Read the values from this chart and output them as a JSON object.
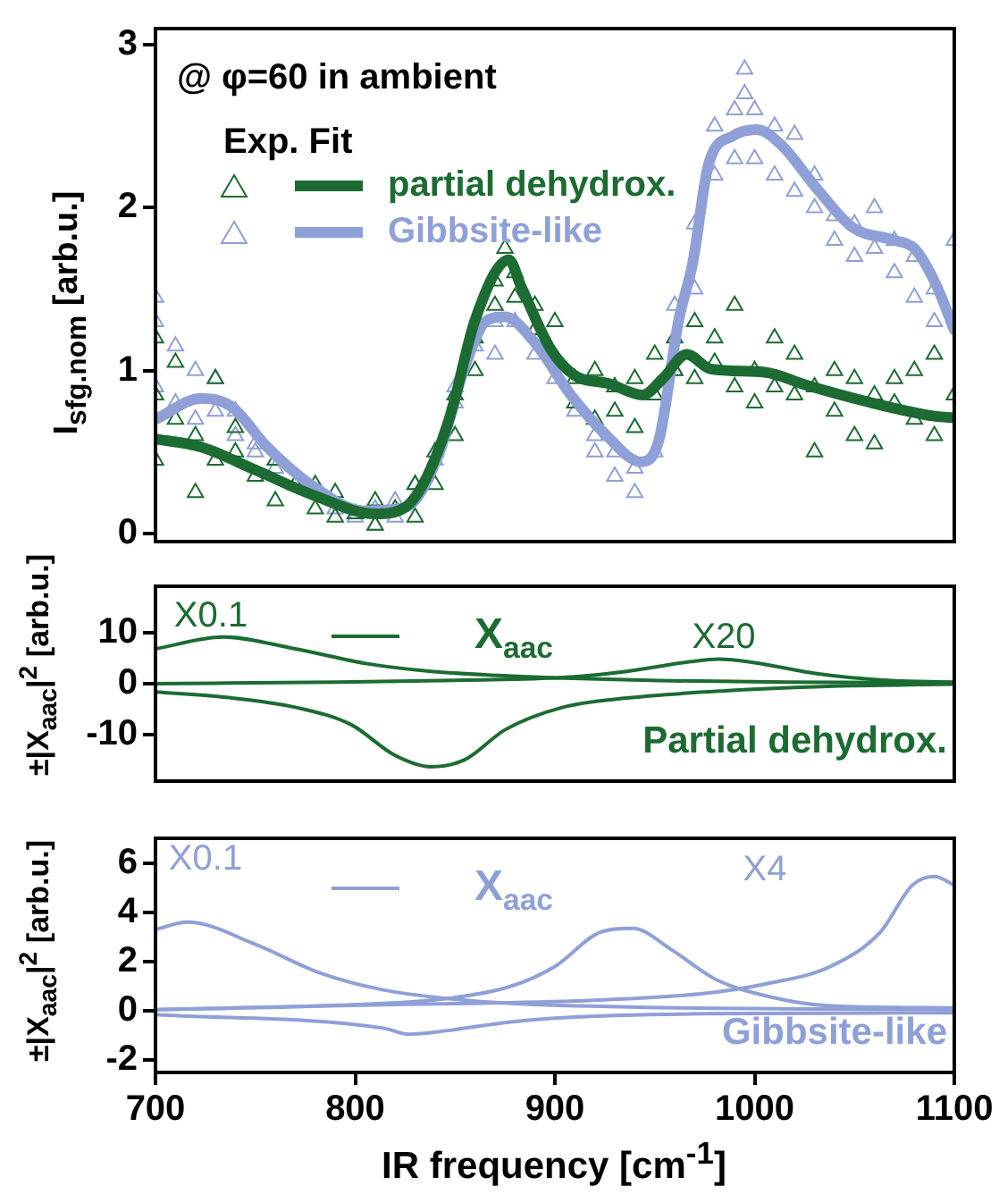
{
  "chart_data": [
    {
      "type": "line",
      "ylabel": "I$_{sfg.nom}$ [arb.u.]",
      "xlim": [
        700,
        1100
      ],
      "ylim": [
        -0.05,
        3.1
      ],
      "yticks": [
        0,
        1,
        2,
        3
      ],
      "tick_labels": "y",
      "grid": false,
      "legend": "top left",
      "legend_title": "Exp. Fit",
      "line_style": "solid",
      "annotations": [
        "@ φ=60 in ambient"
      ],
      "series": [
        {
          "type": "scatter",
          "marker": "triangle",
          "color": "#1c6b32",
          "x": [
            700,
            700,
            700,
            710,
            710,
            720,
            720,
            730,
            730,
            740,
            740,
            750,
            760,
            760,
            770,
            780,
            780,
            790,
            790,
            800,
            810,
            810,
            820,
            830,
            830,
            840,
            840,
            850,
            850,
            860,
            860,
            870,
            870,
            875,
            880,
            880,
            890,
            890,
            900,
            910,
            910,
            920,
            920,
            930,
            930,
            940,
            940,
            950,
            950,
            960,
            960,
            970,
            970,
            980,
            980,
            990,
            990,
            1000,
            1000,
            1010,
            1010,
            1020,
            1020,
            1030,
            1030,
            1040,
            1040,
            1050,
            1050,
            1060,
            1060,
            1070,
            1070,
            1080,
            1080,
            1090,
            1090,
            1100
          ],
          "values": [
            1.2,
            0.45,
            0.85,
            1.05,
            0.7,
            0.6,
            0.25,
            0.95,
            0.45,
            0.5,
            0.65,
            0.35,
            0.45,
            0.2,
            0.3,
            0.15,
            0.3,
            0.1,
            0.25,
            0.12,
            0.05,
            0.2,
            0.15,
            0.3,
            0.1,
            0.5,
            0.3,
            0.85,
            0.6,
            1.2,
            1.0,
            1.55,
            1.4,
            1.75,
            1.6,
            1.45,
            1.4,
            1.25,
            1.3,
            0.95,
            0.8,
            1.0,
            0.7,
            0.9,
            0.75,
            0.95,
            0.65,
            1.1,
            0.85,
            1.2,
            1.0,
            1.3,
            0.95,
            1.05,
            1.2,
            1.4,
            0.9,
            1.0,
            0.8,
            1.2,
            0.9,
            1.1,
            0.85,
            0.9,
            0.5,
            1.0,
            0.75,
            0.95,
            0.6,
            0.85,
            0.55,
            0.8,
            0.95,
            0.7,
            1.0,
            1.1,
            0.6,
            0.85
          ]
        },
        {
          "name": "partial dehydrox.",
          "color": "#1c6b32",
          "x": [
            700,
            723,
            750,
            780,
            810,
            825,
            836,
            848,
            860,
            877,
            883,
            898,
            910,
            927,
            944,
            954,
            966,
            978,
            1005,
            1026,
            1056,
            1090,
            1100
          ],
          "values": [
            0.58,
            0.53,
            0.39,
            0.23,
            0.12,
            0.16,
            0.35,
            0.74,
            1.31,
            1.68,
            1.52,
            1.13,
            0.97,
            0.92,
            0.85,
            0.95,
            1.1,
            1.01,
            0.99,
            0.91,
            0.81,
            0.72,
            0.71
          ]
        },
        {
          "type": "scatter",
          "marker": "triangle",
          "color": "#8fa0d8",
          "x": [
            700,
            700,
            700,
            710,
            710,
            720,
            720,
            730,
            730,
            740,
            740,
            750,
            750,
            760,
            770,
            790,
            800,
            810,
            810,
            820,
            820,
            830,
            840,
            850,
            850,
            860,
            870,
            870,
            880,
            890,
            900,
            910,
            920,
            920,
            930,
            930,
            940,
            940,
            950,
            960,
            960,
            970,
            970,
            980,
            980,
            990,
            990,
            995,
            995,
            1000,
            1000,
            1010,
            1010,
            1020,
            1020,
            1030,
            1030,
            1040,
            1040,
            1050,
            1050,
            1060,
            1060,
            1070,
            1070,
            1080,
            1080,
            1090,
            1090,
            1100
          ],
          "values": [
            1.45,
            1.3,
            0.9,
            1.15,
            0.8,
            1.0,
            0.7,
            0.95,
            0.75,
            0.75,
            0.6,
            0.55,
            0.5,
            0.4,
            0.3,
            0.15,
            0.1,
            0.05,
            0.15,
            0.1,
            0.2,
            0.3,
            0.45,
            0.8,
            0.9,
            1.15,
            1.3,
            1.1,
            1.3,
            1.1,
            0.95,
            0.75,
            0.5,
            0.6,
            0.35,
            0.5,
            0.25,
            0.4,
            0.5,
            1.0,
            1.4,
            1.9,
            1.5,
            2.2,
            2.5,
            2.6,
            2.3,
            2.85,
            2.7,
            2.6,
            2.3,
            2.5,
            2.2,
            2.45,
            2.1,
            2.2,
            2.0,
            1.95,
            1.8,
            1.9,
            1.7,
            2.0,
            1.75,
            1.8,
            1.6,
            1.7,
            1.45,
            1.5,
            1.3,
            1.8
          ]
        },
        {
          "name": "Gibbsite-like",
          "color": "#8fa0d8",
          "x": [
            700,
            723,
            738,
            756,
            780,
            804,
            825,
            842,
            854,
            866,
            875,
            890,
            908,
            926,
            943,
            952,
            962,
            969,
            977,
            989,
            1001,
            1013,
            1031,
            1049,
            1070,
            1080,
            1090,
            1100
          ],
          "values": [
            0.7,
            0.83,
            0.78,
            0.53,
            0.28,
            0.14,
            0.16,
            0.49,
            0.99,
            1.31,
            1.33,
            1.17,
            0.85,
            0.6,
            0.44,
            0.57,
            1.31,
            1.66,
            2.27,
            2.44,
            2.48,
            2.39,
            2.12,
            1.88,
            1.8,
            1.75,
            1.55,
            1.25
          ]
        }
      ]
    },
    {
      "type": "line",
      "ylabel": "±|X$_{aac}$|$^{2}$ [arb.u.]",
      "xlim": [
        700,
        1100
      ],
      "ylim": [
        -19,
        19
      ],
      "yticks": [
        -10,
        0,
        10
      ],
      "tick_labels": "y",
      "grid": false,
      "legend": "top",
      "line_style": "solid",
      "annotations": [
        "X0.1",
        "X20",
        "Partial dehydrox."
      ],
      "series": [
        {
          "name": "X$_{aac}$",
          "color": "#1c6b32",
          "x": [
            700,
            734,
            770,
            806,
            838,
            872,
            904,
            952,
            1016,
            1100
          ],
          "values": [
            6.8,
            9.1,
            6.8,
            3.9,
            2.4,
            1.6,
            1.1,
            0.6,
            0.3,
            0.2
          ]
        },
        {
          "color": "#1c6b32",
          "x": [
            700,
            791,
            855,
            904,
            936,
            968,
            982,
            1000,
            1032,
            1064,
            1100
          ],
          "values": [
            0,
            0.3,
            0.7,
            1.2,
            2.4,
            4.3,
            4.8,
            4.1,
            1.9,
            0.7,
            0.3
          ]
        },
        {
          "color": "#1c6b32",
          "x": [
            700,
            734,
            770,
            798,
            820,
            838,
            855,
            875,
            904,
            936,
            985,
            1048,
            1100
          ],
          "values": [
            -1.6,
            -2.6,
            -4.6,
            -8.0,
            -14.0,
            -16.2,
            -14.8,
            -9.0,
            -4.6,
            -2.8,
            -1.4,
            -0.4,
            -0.1
          ]
        }
      ]
    },
    {
      "type": "line",
      "ylabel": "±|X$_{aac}$|$^{2}$ [arb.u.]",
      "xlabel": "IR frequency [cm$^{-1}$]",
      "xlim": [
        700,
        1100
      ],
      "xticks": [
        700,
        800,
        900,
        1000,
        1100
      ],
      "ylim": [
        -2.5,
        7
      ],
      "yticks": [
        -2,
        0,
        2,
        4,
        6
      ],
      "grid": false,
      "legend": "top",
      "line_style": "solid",
      "annotations": [
        "X0.1",
        "X4",
        "Gibbsite-like"
      ],
      "series": [
        {
          "name": "X$_{aac}$",
          "color": "#8fa0d8",
          "x": [
            700,
            716,
            750,
            782,
            814,
            846,
            878,
            942,
            1100
          ],
          "values": [
            3.3,
            3.6,
            2.7,
            1.55,
            0.85,
            0.5,
            0.3,
            0.15,
            0.05
          ]
        },
        {
          "color": "#8fa0d8",
          "x": [
            700,
            782,
            846,
            878,
            900,
            923,
            939,
            958,
            980,
            1006,
            1038,
            1100
          ],
          "values": [
            0.05,
            0.2,
            0.5,
            1.0,
            1.8,
            3.2,
            3.35,
            2.5,
            1.3,
            0.6,
            0.2,
            0.12
          ]
        },
        {
          "color": "#8fa0d8",
          "x": [
            700,
            814,
            910,
            974,
            1006,
            1038,
            1063,
            1079,
            1090,
            1100
          ],
          "values": [
            0.05,
            0.25,
            0.4,
            0.7,
            1.1,
            1.8,
            3.2,
            5.1,
            5.45,
            5.1
          ]
        },
        {
          "color": "#8fa0d8",
          "x": [
            700,
            814,
            827,
            846,
            878,
            910,
            974,
            1100
          ],
          "values": [
            -0.15,
            -0.7,
            -0.95,
            -0.8,
            -0.45,
            -0.25,
            -0.12,
            -0.08
          ]
        }
      ]
    }
  ]
}
